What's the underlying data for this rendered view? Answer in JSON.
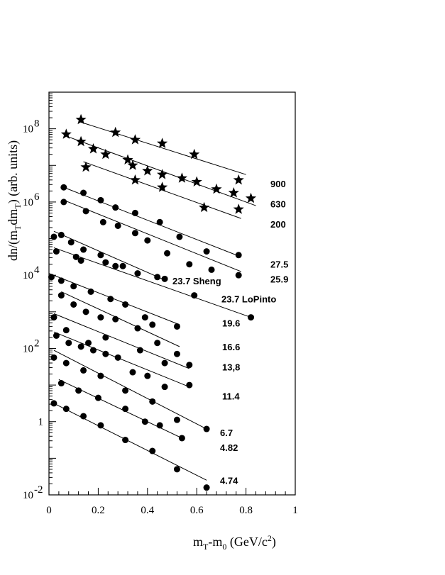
{
  "chart_data": {
    "type": "scatter",
    "xlabel_base": "m",
    "xlabel_sub1": "T",
    "xlabel_mid": "-m",
    "xlabel_sub2": "0",
    "xlabel_unit": " (GeV/c",
    "xlabel_sup": "2",
    "xlabel_close": ")",
    "ylabel_main": "dn/(m",
    "ylabel_sub1": "T",
    "ylabel_mid": "dm",
    "ylabel_sub2": "T",
    "ylabel_end": ") (arb. units)",
    "xlim": [
      0,
      1
    ],
    "ylim_log10": [
      -2,
      9
    ],
    "x_ticks": [
      "0",
      "0.2",
      "0.4",
      "0.6",
      "0.8",
      "1"
    ],
    "y_tick_labels": [
      {
        "exp": -2,
        "base": "10",
        "sup": "-2"
      },
      {
        "exp": 0,
        "base": "1",
        "sup": ""
      },
      {
        "exp": 2,
        "base": "10",
        "sup": "2"
      },
      {
        "exp": 4,
        "base": "10",
        "sup": "4"
      },
      {
        "exp": 6,
        "base": "10",
        "sup": "6"
      },
      {
        "exp": 8,
        "base": "10",
        "sup": "8"
      }
    ],
    "series": [
      {
        "name": "900",
        "marker": "star",
        "label_logy": 6.5,
        "fit": [
          [
            0.12,
            8.2
          ],
          [
            0.8,
            6.75
          ]
        ],
        "points": [
          [
            0.13,
            8.25
          ],
          [
            0.27,
            7.9
          ],
          [
            0.35,
            7.7
          ],
          [
            0.46,
            7.6
          ],
          [
            0.59,
            7.3
          ],
          [
            0.77,
            6.6
          ]
        ]
      },
      {
        "name": "630",
        "marker": "star",
        "label_logy": 5.95,
        "fit": [
          [
            0.07,
            7.8
          ],
          [
            0.84,
            5.9
          ]
        ],
        "points": [
          [
            0.07,
            7.85
          ],
          [
            0.13,
            7.65
          ],
          [
            0.18,
            7.45
          ],
          [
            0.23,
            7.3
          ],
          [
            0.32,
            7.15
          ],
          [
            0.34,
            7.0
          ],
          [
            0.4,
            6.85
          ],
          [
            0.46,
            6.75
          ],
          [
            0.54,
            6.65
          ],
          [
            0.6,
            6.55
          ],
          [
            0.68,
            6.35
          ],
          [
            0.75,
            6.25
          ],
          [
            0.82,
            6.1
          ]
        ]
      },
      {
        "name": "200",
        "marker": "star",
        "label_logy": 5.4,
        "fit": [
          [
            0.14,
            7.1
          ],
          [
            0.78,
            5.55
          ]
        ],
        "points": [
          [
            0.15,
            6.95
          ],
          [
            0.35,
            6.6
          ],
          [
            0.46,
            6.4
          ],
          [
            0.63,
            5.85
          ],
          [
            0.77,
            5.8
          ]
        ]
      },
      {
        "name": "27.5",
        "marker": "circle",
        "label_logy": 4.3,
        "fit": [
          [
            0.06,
            6.4
          ],
          [
            0.78,
            4.5
          ]
        ],
        "points": [
          [
            0.06,
            6.4
          ],
          [
            0.14,
            6.25
          ],
          [
            0.21,
            6.05
          ],
          [
            0.27,
            5.85
          ],
          [
            0.35,
            5.7
          ],
          [
            0.45,
            5.45
          ],
          [
            0.53,
            5.05
          ],
          [
            0.64,
            4.65
          ],
          [
            0.77,
            4.55
          ]
        ]
      },
      {
        "name": "25.9",
        "marker": "circle",
        "label_logy": 3.9,
        "fit": [
          [
            0.06,
            6.05
          ],
          [
            0.78,
            4.1
          ]
        ],
        "points": [
          [
            0.06,
            6.0
          ],
          [
            0.15,
            5.75
          ],
          [
            0.22,
            5.45
          ],
          [
            0.28,
            5.35
          ],
          [
            0.35,
            5.15
          ],
          [
            0.4,
            4.95
          ],
          [
            0.48,
            4.6
          ],
          [
            0.57,
            4.3
          ],
          [
            0.66,
            4.15
          ],
          [
            0.77,
            4.0
          ]
        ]
      },
      {
        "name": "23.7 Sheng",
        "marker": "circle",
        "label_logy": 3.85,
        "fit": [
          [
            0.02,
            5.2
          ],
          [
            0.46,
            3.9
          ]
        ],
        "points": [
          [
            0.02,
            5.05
          ],
          [
            0.05,
            5.1
          ],
          [
            0.09,
            4.9
          ],
          [
            0.14,
            4.7
          ],
          [
            0.21,
            4.55
          ],
          [
            0.27,
            4.25
          ],
          [
            0.36,
            4.05
          ],
          [
            0.44,
            3.95
          ],
          [
            0.47,
            3.9
          ]
        ]
      },
      {
        "name": "23.7 LoPinto",
        "marker": "circle",
        "label_logy": 3.35,
        "fit": [
          [
            0.02,
            4.75
          ],
          [
            0.82,
            2.85
          ]
        ],
        "points": [
          [
            0.03,
            4.65
          ],
          [
            0.11,
            4.5
          ],
          [
            0.13,
            4.4
          ],
          [
            0.23,
            4.35
          ],
          [
            0.3,
            4.25
          ],
          [
            0.59,
            3.45
          ],
          [
            0.82,
            2.85
          ]
        ]
      },
      {
        "name": "19.6",
        "marker": "circle",
        "label_logy": 2.7,
        "fit": [
          [
            0.0,
            4.05
          ],
          [
            0.53,
            2.65
          ]
        ],
        "points": [
          [
            0.01,
            3.95
          ],
          [
            0.05,
            3.85
          ],
          [
            0.1,
            3.7
          ],
          [
            0.17,
            3.55
          ],
          [
            0.25,
            3.35
          ],
          [
            0.31,
            3.2
          ],
          [
            0.39,
            2.85
          ],
          [
            0.42,
            2.65
          ],
          [
            0.52,
            2.6
          ]
        ]
      },
      {
        "name": "16.6",
        "marker": "circle",
        "label_logy": 2.05,
        "fit": [
          [
            0.05,
            3.55
          ],
          [
            0.53,
            2.05
          ]
        ],
        "points": [
          [
            0.05,
            3.45
          ],
          [
            0.1,
            3.2
          ],
          [
            0.15,
            3.0
          ],
          [
            0.21,
            2.85
          ],
          [
            0.27,
            2.8
          ],
          [
            0.36,
            2.55
          ],
          [
            0.44,
            2.15
          ],
          [
            0.52,
            1.85
          ]
        ]
      },
      {
        "name": "13,8",
        "marker": "circle",
        "label_logy": 1.5,
        "fit": [
          [
            0.02,
            2.95
          ],
          [
            0.57,
            1.45
          ]
        ],
        "points": [
          [
            0.02,
            2.85
          ],
          [
            0.07,
            2.5
          ],
          [
            0.16,
            2.15
          ],
          [
            0.23,
            2.3
          ],
          [
            0.37,
            1.95
          ],
          [
            0.47,
            1.6
          ],
          [
            0.57,
            1.55
          ]
        ]
      },
      {
        "name": "11.4",
        "marker": "circle",
        "label_logy": 0.7,
        "fit": [
          [
            0.02,
            2.45
          ],
          [
            0.57,
            0.95
          ]
        ],
        "points": [
          [
            0.03,
            2.35
          ],
          [
            0.08,
            2.15
          ],
          [
            0.13,
            2.05
          ],
          [
            0.18,
            1.95
          ],
          [
            0.23,
            1.85
          ],
          [
            0.28,
            1.75
          ],
          [
            0.34,
            1.35
          ],
          [
            0.4,
            1.25
          ],
          [
            0.47,
            0.95
          ],
          [
            0.57,
            1.0
          ]
        ]
      },
      {
        "name": "6.7",
        "marker": "circle",
        "label_logy": -0.3,
        "fit": [
          [
            0.02,
            1.95
          ],
          [
            0.64,
            -0.2
          ]
        ],
        "points": [
          [
            0.02,
            1.75
          ],
          [
            0.07,
            1.6
          ],
          [
            0.14,
            1.4
          ],
          [
            0.21,
            1.25
          ],
          [
            0.31,
            0.85
          ],
          [
            0.42,
            0.55
          ],
          [
            0.52,
            0.05
          ],
          [
            0.64,
            -0.2
          ]
        ]
      },
      {
        "name": "4.82",
        "marker": "circle",
        "label_logy": -0.7,
        "fit": [
          [
            0.04,
            1.15
          ],
          [
            0.54,
            -0.45
          ]
        ],
        "points": [
          [
            0.05,
            1.05
          ],
          [
            0.12,
            0.85
          ],
          [
            0.2,
            0.65
          ],
          [
            0.31,
            0.35
          ],
          [
            0.39,
            0.0
          ],
          [
            0.45,
            -0.1
          ],
          [
            0.54,
            -0.45
          ]
        ]
      },
      {
        "name": "4.74",
        "marker": "circle",
        "label_logy": -1.6,
        "fit": [
          [
            0.02,
            0.5
          ],
          [
            0.64,
            -1.6
          ]
        ],
        "points": [
          [
            0.02,
            0.5
          ],
          [
            0.07,
            0.35
          ],
          [
            0.14,
            0.15
          ],
          [
            0.21,
            -0.1
          ],
          [
            0.31,
            -0.5
          ],
          [
            0.42,
            -0.8
          ],
          [
            0.52,
            -1.3
          ],
          [
            0.64,
            -1.8
          ]
        ]
      }
    ]
  }
}
